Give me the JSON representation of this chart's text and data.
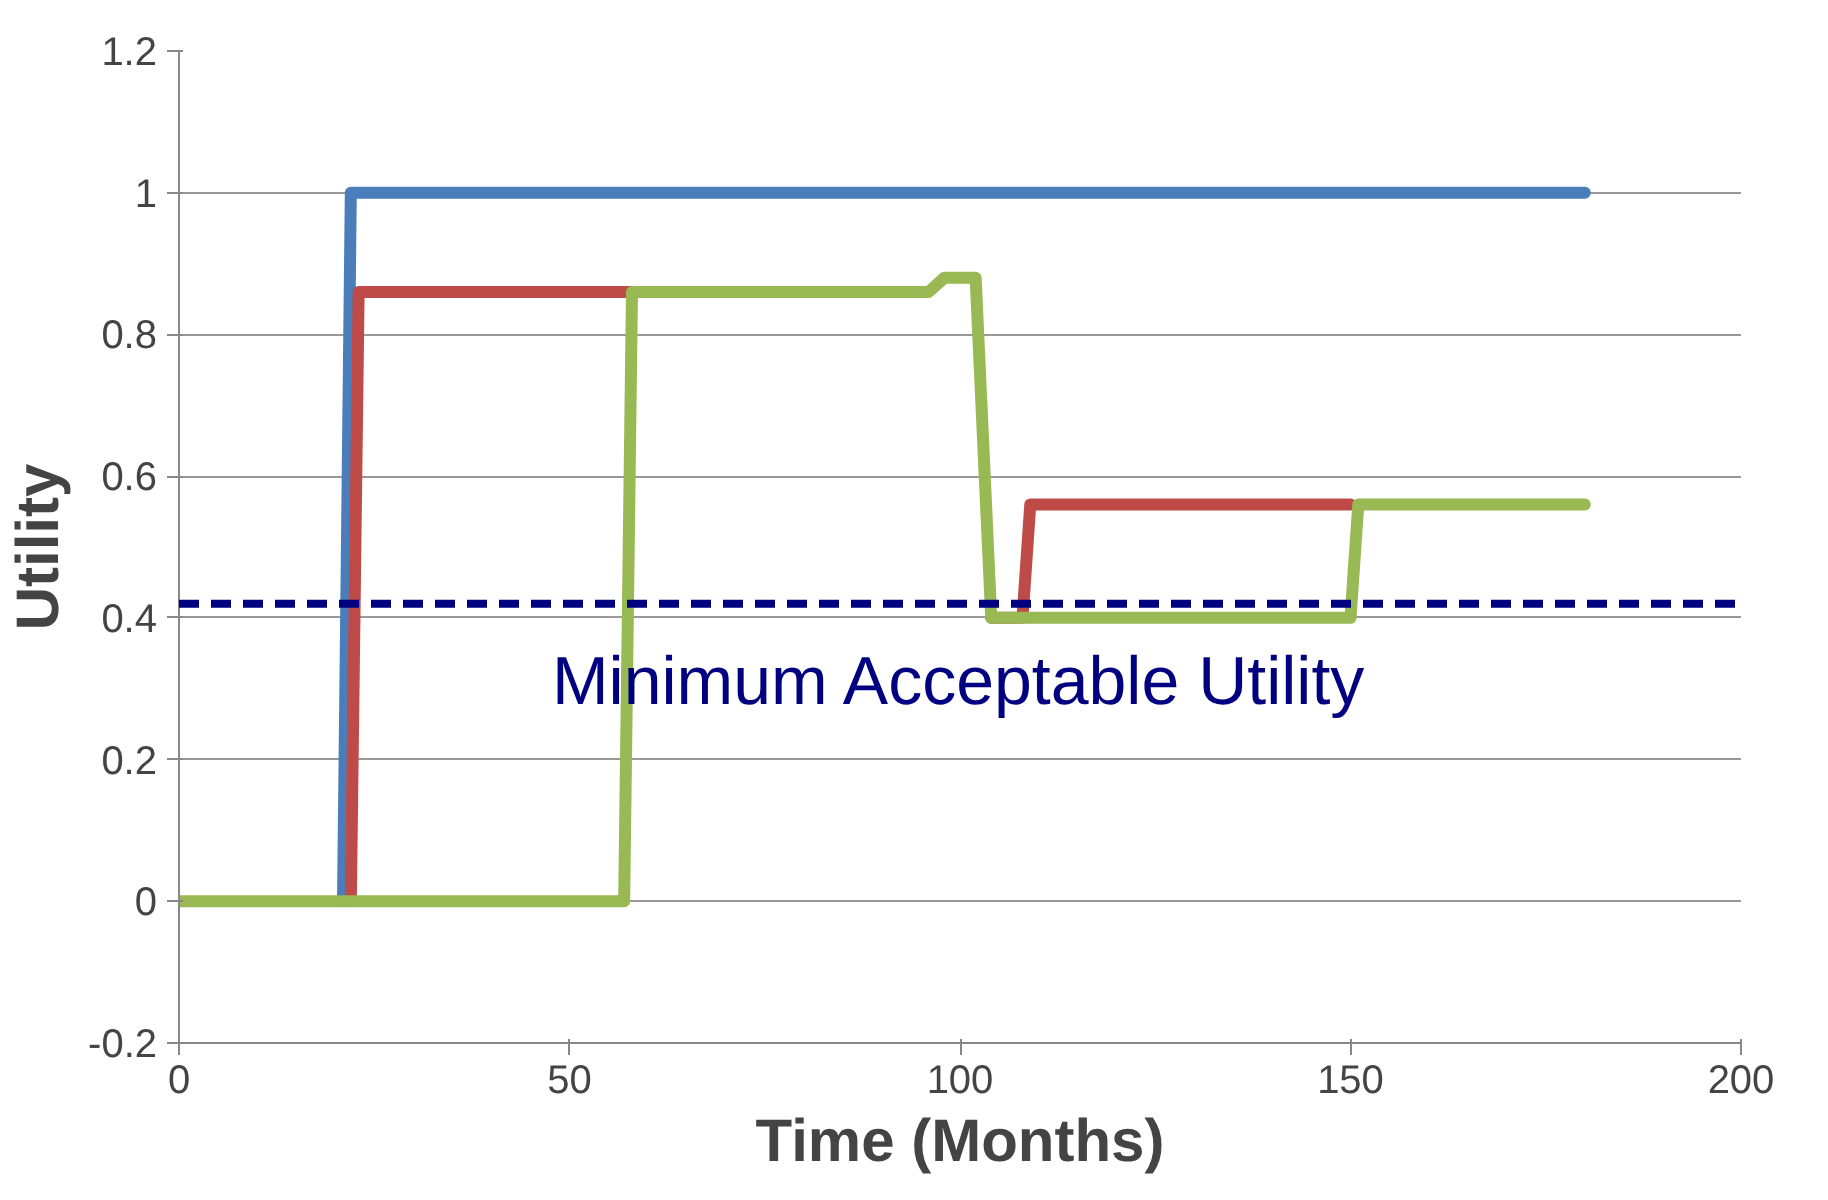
{
  "chart_data": {
    "type": "line",
    "xlabel": "Time (Months)",
    "ylabel": "Utility",
    "xlim": [
      0,
      200
    ],
    "ylim": [
      -0.2,
      1.2
    ],
    "xticks": [
      0,
      50,
      100,
      150,
      200
    ],
    "yticks": [
      -0.2,
      0,
      0.2,
      0.4,
      0.6,
      0.8,
      1,
      1.2
    ],
    "grid": "y",
    "marker": "none",
    "line_style": "solid",
    "series": [
      {
        "color": "#4a7ebb",
        "x": [
          21,
          22,
          180
        ],
        "values": [
          0,
          1,
          1
        ]
      },
      {
        "color": "#be4b48",
        "x": [
          22,
          23,
          58,
          80,
          104,
          108,
          109,
          150
        ],
        "values": [
          0,
          0.86,
          0.86,
          null,
          0.4,
          0.4,
          0.56,
          0.56
        ]
      },
      {
        "color": "#98b954",
        "x": [
          0,
          57,
          58,
          96,
          98,
          102,
          104,
          150,
          151,
          180
        ],
        "values": [
          0,
          0,
          0.86,
          0.86,
          0.88,
          0.88,
          0.4,
          0.4,
          0.56,
          0.56
        ]
      }
    ],
    "ref_lines": [
      {
        "axis": "y",
        "value": 0.42,
        "label": "Minimum Acceptable Utility",
        "color": "#000080",
        "line_style": "dashed"
      }
    ]
  }
}
